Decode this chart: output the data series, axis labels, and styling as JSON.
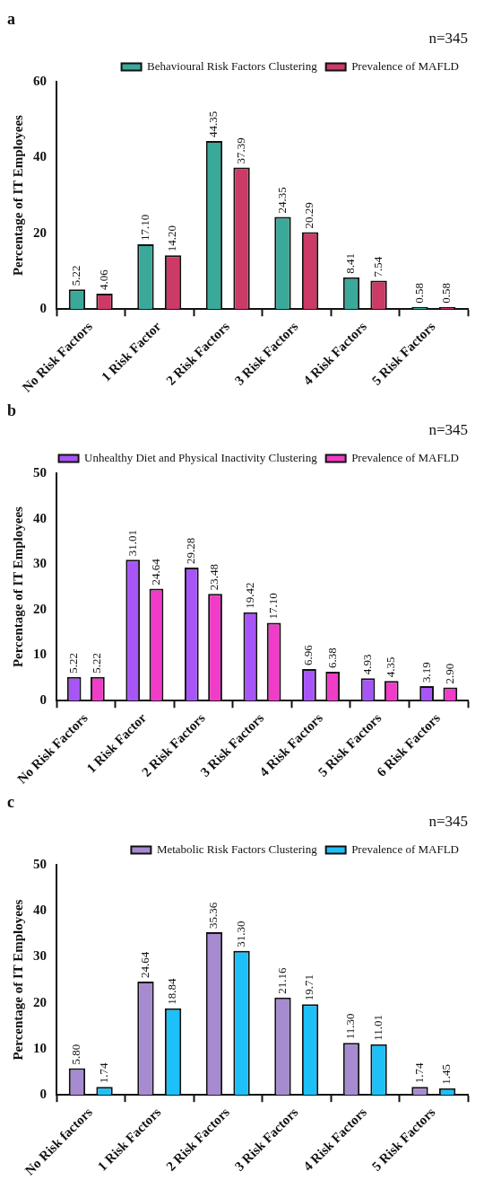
{
  "chart_data": [
    {
      "type": "bar",
      "title": "a",
      "subtitle": "n=345",
      "ylabel": "Percentage of IT Employees",
      "categories": [
        "No Risk Factors",
        "1 Risk Factor",
        "2 Risk Factors",
        "3 Risk Factors",
        "4 Risk Factors",
        "5 Risk Factors"
      ],
      "series": [
        {
          "name": "Behavioural Risk Factors Clustering",
          "color": "#3aa99a",
          "values": [
            5.22,
            17.1,
            44.35,
            24.35,
            8.41,
            0.58
          ],
          "value_labels": [
            "5.22",
            "17.10",
            "44.35",
            "24.35",
            "8.41",
            "0.58"
          ]
        },
        {
          "name": "Prevalence of MAFLD",
          "color": "#cc3a66",
          "values": [
            4.06,
            14.2,
            37.39,
            20.29,
            7.54,
            0.58
          ],
          "value_labels": [
            "4.06",
            "14.20",
            "37.39",
            "20.29",
            "7.54",
            "0.58"
          ]
        }
      ],
      "ylim": [
        0,
        60
      ],
      "yticks": [
        0,
        20,
        40,
        60
      ],
      "grid": false,
      "legend": "top right"
    },
    {
      "type": "bar",
      "title": "b",
      "subtitle": "n=345",
      "ylabel": "Percentage of IT Employees",
      "categories": [
        "No Risk Factors",
        "1 Risk Factor",
        "2 Risk Factors",
        "3 Risk Factors",
        "4 Risk Factors",
        "5 Risk Factors",
        "6 Risk Factors"
      ],
      "series": [
        {
          "name": "Unhealthy Diet and Physical Inactivity Clustering",
          "color": "#a855f7",
          "values": [
            5.22,
            31.01,
            29.28,
            19.42,
            6.96,
            4.93,
            3.19
          ],
          "value_labels": [
            "5.22",
            "31.01",
            "29.28",
            "19.42",
            "6.96",
            "4.93",
            "3.19"
          ]
        },
        {
          "name": "Prevalence of MAFLD",
          "color": "#f03cc8",
          "values": [
            5.22,
            24.64,
            23.48,
            17.1,
            6.38,
            4.35,
            2.9
          ],
          "value_labels": [
            "5.22",
            "24.64",
            "23.48",
            "17.10",
            "6.38",
            "4.35",
            "2.90"
          ]
        }
      ],
      "ylim": [
        0,
        50
      ],
      "yticks": [
        0,
        10,
        20,
        30,
        40,
        50
      ],
      "grid": false,
      "legend": "top right"
    },
    {
      "type": "bar",
      "title": "c",
      "subtitle": "n=345",
      "ylabel": "Percentage of IT Employees",
      "categories": [
        "No Risk factors",
        "1 Risk Factors",
        "2 Risk Factors",
        "3 Risk Factors",
        "4 Risk Factors",
        "5 Risk Factors"
      ],
      "series": [
        {
          "name": "Metabolic Risk Factors Clustering",
          "color": "#a78bd0",
          "values": [
            5.8,
            24.64,
            35.36,
            21.16,
            11.3,
            1.74
          ],
          "value_labels": [
            "5.80",
            "24.64",
            "35.36",
            "21.16",
            "11.30",
            "1.74"
          ]
        },
        {
          "name": "Prevalence of MAFLD",
          "color": "#1ec0f8",
          "values": [
            1.74,
            18.84,
            31.3,
            19.71,
            11.01,
            1.45
          ],
          "value_labels": [
            "1.74",
            "18.84",
            "31.30",
            "19.71",
            "11.01",
            "1.45"
          ]
        }
      ],
      "ylim": [
        0,
        50
      ],
      "yticks": [
        0,
        10,
        20,
        30,
        40,
        50
      ],
      "grid": false,
      "legend": "top right"
    }
  ]
}
